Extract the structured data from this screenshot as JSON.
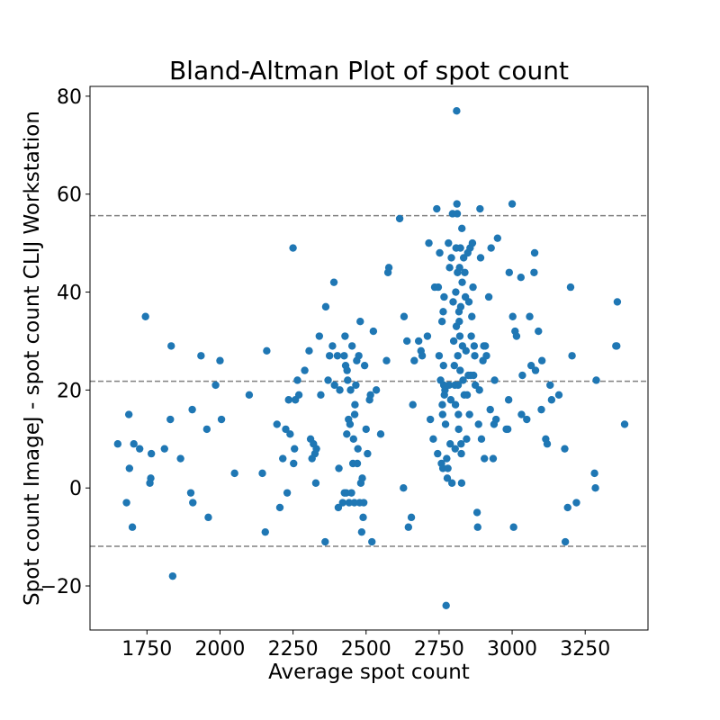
{
  "chart_data": {
    "type": "scatter",
    "title": "Bland-Altman Plot of spot count",
    "xlabel": "Average spot count",
    "ylabel": "Spot count ImageJ - spot count CLIJ Workstation",
    "xlim": [
      1555,
      3465
    ],
    "ylim": [
      -29,
      82
    ],
    "xticks": [
      1750,
      2000,
      2250,
      2500,
      2750,
      3000,
      3250
    ],
    "yticks": [
      -20,
      0,
      20,
      40,
      60,
      80
    ],
    "ytick_labels": [
      "−20",
      "0",
      "20",
      "40",
      "60",
      "80"
    ],
    "grid": false,
    "legend": "none",
    "point_color": "#1f77b4",
    "reference_line_color": "#808080",
    "reference_lines": {
      "mean": 21.8,
      "upper_loa": 55.6,
      "lower_loa": -11.9
    },
    "points": [
      [
        1650,
        9
      ],
      [
        1680,
        -3
      ],
      [
        1688,
        15
      ],
      [
        1690,
        4
      ],
      [
        1700,
        -8
      ],
      [
        1705,
        9
      ],
      [
        1725,
        8
      ],
      [
        1745,
        35
      ],
      [
        1760,
        1
      ],
      [
        1763,
        2
      ],
      [
        1765,
        7
      ],
      [
        1810,
        8
      ],
      [
        1830,
        14
      ],
      [
        1833,
        29
      ],
      [
        1838,
        -18
      ],
      [
        1865,
        6
      ],
      [
        1900,
        -1
      ],
      [
        1905,
        16
      ],
      [
        1907,
        -3
      ],
      [
        1935,
        27
      ],
      [
        1955,
        12
      ],
      [
        1960,
        -6
      ],
      [
        1985,
        21
      ],
      [
        2000,
        26
      ],
      [
        2005,
        14
      ],
      [
        2050,
        3
      ],
      [
        2100,
        19
      ],
      [
        2145,
        3
      ],
      [
        2155,
        -9
      ],
      [
        2160,
        28
      ],
      [
        2195,
        13
      ],
      [
        2205,
        -4
      ],
      [
        2215,
        6
      ],
      [
        2225,
        12
      ],
      [
        2230,
        -1
      ],
      [
        2235,
        18
      ],
      [
        2240,
        11
      ],
      [
        2250,
        49
      ],
      [
        2252,
        5
      ],
      [
        2255,
        8
      ],
      [
        2258,
        18
      ],
      [
        2265,
        22
      ],
      [
        2270,
        19
      ],
      [
        2290,
        24
      ],
      [
        2305,
        28
      ],
      [
        2310,
        10
      ],
      [
        2315,
        6
      ],
      [
        2320,
        9
      ],
      [
        2325,
        7
      ],
      [
        2328,
        1
      ],
      [
        2330,
        8
      ],
      [
        2340,
        31
      ],
      [
        2345,
        19
      ],
      [
        2360,
        -11
      ],
      [
        2362,
        37
      ],
      [
        2370,
        22
      ],
      [
        2375,
        27
      ],
      [
        2385,
        29
      ],
      [
        2390,
        42
      ],
      [
        2392,
        21
      ],
      [
        2402,
        27
      ],
      [
        2405,
        -4
      ],
      [
        2407,
        4
      ],
      [
        2410,
        20
      ],
      [
        2420,
        -3
      ],
      [
        2425,
        27
      ],
      [
        2426,
        -1
      ],
      [
        2428,
        31
      ],
      [
        2430,
        25
      ],
      [
        2432,
        -1
      ],
      [
        2434,
        11
      ],
      [
        2435,
        24
      ],
      [
        2437,
        22
      ],
      [
        2440,
        14
      ],
      [
        2442,
        -3
      ],
      [
        2445,
        13
      ],
      [
        2447,
        20
      ],
      [
        2450,
        -1
      ],
      [
        2452,
        29
      ],
      [
        2455,
        5
      ],
      [
        2457,
        10
      ],
      [
        2460,
        -3
      ],
      [
        2461,
        15
      ],
      [
        2462,
        17
      ],
      [
        2465,
        21
      ],
      [
        2468,
        26
      ],
      [
        2470,
        5
      ],
      [
        2472,
        8
      ],
      [
        2475,
        27
      ],
      [
        2478,
        -3
      ],
      [
        2480,
        34
      ],
      [
        2482,
        1
      ],
      [
        2485,
        -9
      ],
      [
        2487,
        2
      ],
      [
        2490,
        -6
      ],
      [
        2492,
        -3
      ],
      [
        2495,
        25
      ],
      [
        2500,
        12
      ],
      [
        2505,
        7
      ],
      [
        2512,
        18
      ],
      [
        2515,
        19
      ],
      [
        2520,
        -11
      ],
      [
        2525,
        32
      ],
      [
        2535,
        20
      ],
      [
        2550,
        11
      ],
      [
        2570,
        26
      ],
      [
        2575,
        44
      ],
      [
        2578,
        45
      ],
      [
        2615,
        55
      ],
      [
        2628,
        0
      ],
      [
        2630,
        35
      ],
      [
        2640,
        30
      ],
      [
        2645,
        -8
      ],
      [
        2655,
        -6
      ],
      [
        2660,
        17
      ],
      [
        2665,
        26
      ],
      [
        2680,
        30
      ],
      [
        2688,
        28
      ],
      [
        2692,
        27
      ],
      [
        2710,
        31
      ],
      [
        2715,
        50
      ],
      [
        2720,
        14
      ],
      [
        2730,
        10
      ],
      [
        2735,
        41
      ],
      [
        2742,
        57
      ],
      [
        2745,
        7
      ],
      [
        2747,
        41
      ],
      [
        2750,
        27
      ],
      [
        2752,
        48
      ],
      [
        2755,
        22
      ],
      [
        2758,
        5
      ],
      [
        2760,
        34
      ],
      [
        2761,
        17
      ],
      [
        2762,
        15
      ],
      [
        2763,
        4
      ],
      [
        2764,
        36
      ],
      [
        2765,
        25
      ],
      [
        2766,
        21
      ],
      [
        2767,
        39
      ],
      [
        2768,
        19
      ],
      [
        2770,
        20
      ],
      [
        2772,
        13
      ],
      [
        2774,
        -24
      ],
      [
        2776,
        6
      ],
      [
        2778,
        2
      ],
      [
        2780,
        4
      ],
      [
        2782,
        50
      ],
      [
        2784,
        21
      ],
      [
        2786,
        45
      ],
      [
        2788,
        9
      ],
      [
        2790,
        18
      ],
      [
        2792,
        47
      ],
      [
        2794,
        1
      ],
      [
        2796,
        56
      ],
      [
        2798,
        38
      ],
      [
        2800,
        30
      ],
      [
        2802,
        25
      ],
      [
        2804,
        21
      ],
      [
        2805,
        8
      ],
      [
        2806,
        17
      ],
      [
        2807,
        40
      ],
      [
        2808,
        49
      ],
      [
        2809,
        33
      ],
      [
        2810,
        77
      ],
      [
        2811,
        58
      ],
      [
        2812,
        56
      ],
      [
        2813,
        44
      ],
      [
        2814,
        27
      ],
      [
        2815,
        21
      ],
      [
        2816,
        15
      ],
      [
        2817,
        12
      ],
      [
        2818,
        36
      ],
      [
        2819,
        34
      ],
      [
        2820,
        45
      ],
      [
        2821,
        31
      ],
      [
        2822,
        24
      ],
      [
        2823,
        49
      ],
      [
        2824,
        37
      ],
      [
        2825,
        9
      ],
      [
        2826,
        7
      ],
      [
        2827,
        1
      ],
      [
        2828,
        53
      ],
      [
        2829,
        42
      ],
      [
        2830,
        29
      ],
      [
        2832,
        22
      ],
      [
        2834,
        47
      ],
      [
        2836,
        19
      ],
      [
        2838,
        44
      ],
      [
        2840,
        39
      ],
      [
        2842,
        28
      ],
      [
        2844,
        10
      ],
      [
        2846,
        19
      ],
      [
        2848,
        48
      ],
      [
        2850,
        23
      ],
      [
        2852,
        38
      ],
      [
        2854,
        15
      ],
      [
        2856,
        49
      ],
      [
        2858,
        23
      ],
      [
        2860,
        31
      ],
      [
        2862,
        35
      ],
      [
        2864,
        50
      ],
      [
        2866,
        41
      ],
      [
        2868,
        23
      ],
      [
        2870,
        29
      ],
      [
        2872,
        27
      ],
      [
        2874,
        21
      ],
      [
        2880,
        -5
      ],
      [
        2882,
        -8
      ],
      [
        2885,
        13
      ],
      [
        2888,
        20
      ],
      [
        2890,
        57
      ],
      [
        2892,
        47
      ],
      [
        2895,
        10
      ],
      [
        2900,
        26
      ],
      [
        2903,
        29
      ],
      [
        2905,
        6
      ],
      [
        2908,
        29
      ],
      [
        2912,
        27
      ],
      [
        2920,
        39
      ],
      [
        2925,
        16
      ],
      [
        2928,
        49
      ],
      [
        2935,
        6
      ],
      [
        2938,
        13
      ],
      [
        2940,
        22
      ],
      [
        2945,
        14
      ],
      [
        2950,
        51
      ],
      [
        2980,
        12
      ],
      [
        2985,
        12
      ],
      [
        2988,
        18
      ],
      [
        2990,
        44
      ],
      [
        3000,
        58
      ],
      [
        3002,
        35
      ],
      [
        3005,
        -8
      ],
      [
        3010,
        32
      ],
      [
        3015,
        31
      ],
      [
        3030,
        43
      ],
      [
        3032,
        15
      ],
      [
        3035,
        23
      ],
      [
        3050,
        14
      ],
      [
        3060,
        35
      ],
      [
        3065,
        25
      ],
      [
        3075,
        44
      ],
      [
        3077,
        48
      ],
      [
        3080,
        24
      ],
      [
        3090,
        32
      ],
      [
        3100,
        16
      ],
      [
        3102,
        26
      ],
      [
        3115,
        10
      ],
      [
        3120,
        9
      ],
      [
        3130,
        21
      ],
      [
        3135,
        18
      ],
      [
        3160,
        19
      ],
      [
        3180,
        8
      ],
      [
        3182,
        -11
      ],
      [
        3190,
        -4
      ],
      [
        3200,
        41
      ],
      [
        3205,
        27
      ],
      [
        3220,
        -3
      ],
      [
        3282,
        3
      ],
      [
        3285,
        0
      ],
      [
        3288,
        22
      ],
      [
        3355,
        29
      ],
      [
        3358,
        29
      ],
      [
        3360,
        38
      ],
      [
        3385,
        13
      ]
    ]
  }
}
